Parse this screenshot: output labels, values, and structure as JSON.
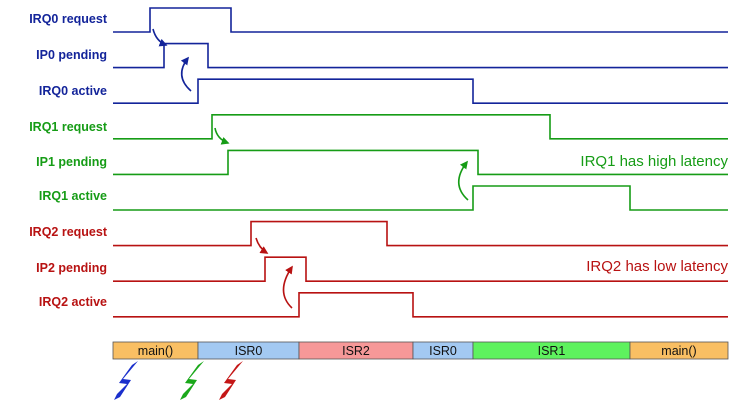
{
  "colors": {
    "irq0": "#13249a",
    "irq1": "#169c16",
    "irq2": "#b81212"
  },
  "signals": [
    {
      "label": "IRQ0 request",
      "group": "irq0",
      "initial": 0,
      "transitions": [
        150,
        231
      ]
    },
    {
      "label": "IP0 pending",
      "group": "irq0",
      "initial": 0,
      "transitions": [
        164,
        208
      ]
    },
    {
      "label": "IRQ0 active",
      "group": "irq0",
      "initial": 0,
      "transitions": [
        198,
        473
      ]
    },
    {
      "label": "IRQ1 request",
      "group": "irq1",
      "initial": 0,
      "transitions": [
        212,
        550
      ]
    },
    {
      "label": "IP1 pending",
      "group": "irq1",
      "initial": 0,
      "transitions": [
        228,
        478
      ]
    },
    {
      "label": "IRQ1 active",
      "group": "irq1",
      "initial": 0,
      "transitions": [
        473,
        630
      ]
    },
    {
      "label": "IRQ2 request",
      "group": "irq2",
      "initial": 0,
      "transitions": [
        251,
        387
      ]
    },
    {
      "label": "IP2 pending",
      "group": "irq2",
      "initial": 0,
      "transitions": [
        265,
        306
      ]
    },
    {
      "label": "IRQ2 active",
      "group": "irq2",
      "initial": 0,
      "transitions": [
        299,
        413
      ]
    }
  ],
  "notes": [
    {
      "text": "IRQ1 has high latency",
      "group": "irq1"
    },
    {
      "text": "IRQ2 has low latency",
      "group": "irq2"
    }
  ],
  "timeline": [
    {
      "label": "main()",
      "start": 113,
      "end": 198,
      "color": "#f9bf63"
    },
    {
      "label": "ISR0",
      "start": 198,
      "end": 299,
      "color": "#a3c9f2"
    },
    {
      "label": "ISR2",
      "start": 299,
      "end": 413,
      "color": "#f69898"
    },
    {
      "label": "ISR0",
      "start": 413,
      "end": 473,
      "color": "#a3c9f2"
    },
    {
      "label": "ISR1",
      "start": 473,
      "end": 630,
      "color": "#5ef25e"
    },
    {
      "label": "main()",
      "start": 630,
      "end": 728,
      "color": "#f9bf63"
    }
  ],
  "lightning": [
    {
      "group": "irq0",
      "icon": "lightning-bolt-icon"
    },
    {
      "group": "irq1",
      "icon": "lightning-bolt-icon"
    },
    {
      "group": "irq2",
      "icon": "lightning-bolt-icon"
    }
  ]
}
